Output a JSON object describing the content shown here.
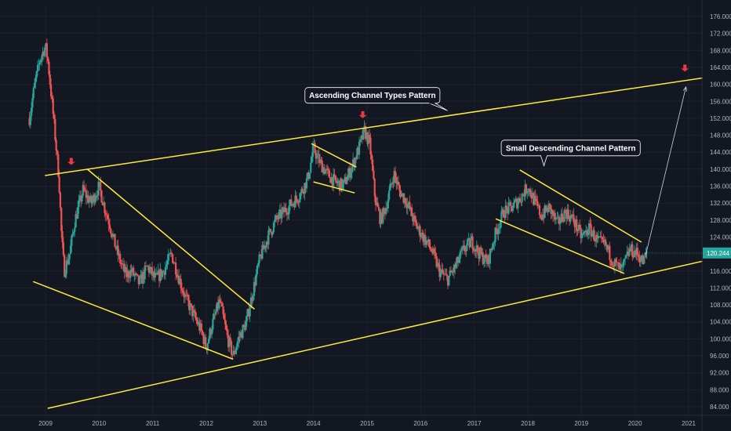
{
  "chart_data": {
    "type": "candlestick",
    "y_ticks": [
      "176.000",
      "172.000",
      "168.000",
      "164.000",
      "160.000",
      "156.000",
      "152.000",
      "148.000",
      "144.000",
      "140.000",
      "136.000",
      "132.000",
      "128.000",
      "124.000",
      "120.000",
      "116.000",
      "112.000",
      "108.000",
      "104.000",
      "100.000",
      "96.000",
      "92.000",
      "88.000",
      "84.000"
    ],
    "x_ticks": [
      "2009",
      "2010",
      "2011",
      "2012",
      "2013",
      "2014",
      "2015",
      "2016",
      "2017",
      "2018",
      "2019",
      "2020",
      "2021"
    ],
    "ylim": [
      83,
      178
    ],
    "xlim": [
      2008.7,
      2021.3
    ],
    "last_price": "120.244",
    "price_path": [
      [
        2008.7,
        152
      ],
      [
        2008.8,
        160
      ],
      [
        2008.9,
        166
      ],
      [
        2009.0,
        169
      ],
      [
        2009.05,
        165
      ],
      [
        2009.15,
        152
      ],
      [
        2009.25,
        138
      ],
      [
        2009.3,
        124
      ],
      [
        2009.35,
        116
      ],
      [
        2009.45,
        120
      ],
      [
        2009.55,
        128
      ],
      [
        2009.7,
        135
      ],
      [
        2009.85,
        132
      ],
      [
        2010.0,
        136
      ],
      [
        2010.1,
        131
      ],
      [
        2010.2,
        127
      ],
      [
        2010.3,
        122
      ],
      [
        2010.4,
        118
      ],
      [
        2010.5,
        115
      ],
      [
        2010.6,
        116
      ],
      [
        2010.75,
        113
      ],
      [
        2010.9,
        117
      ],
      [
        2011.05,
        114
      ],
      [
        2011.2,
        116
      ],
      [
        2011.35,
        120
      ],
      [
        2011.45,
        116
      ],
      [
        2011.6,
        110
      ],
      [
        2011.75,
        106
      ],
      [
        2011.9,
        102
      ],
      [
        2012.0,
        98
      ],
      [
        2012.1,
        103
      ],
      [
        2012.25,
        109
      ],
      [
        2012.4,
        100
      ],
      [
        2012.5,
        96
      ],
      [
        2012.6,
        100
      ],
      [
        2012.75,
        104
      ],
      [
        2012.85,
        110
      ],
      [
        2013.0,
        119
      ],
      [
        2013.15,
        124
      ],
      [
        2013.3,
        128
      ],
      [
        2013.45,
        130
      ],
      [
        2013.6,
        132
      ],
      [
        2013.75,
        134
      ],
      [
        2013.9,
        138
      ],
      [
        2014.0,
        145
      ],
      [
        2014.1,
        142
      ],
      [
        2014.25,
        139
      ],
      [
        2014.4,
        137
      ],
      [
        2014.55,
        136
      ],
      [
        2014.7,
        140
      ],
      [
        2014.85,
        145
      ],
      [
        2014.95,
        149
      ],
      [
        2015.05,
        146
      ],
      [
        2015.15,
        133
      ],
      [
        2015.25,
        128
      ],
      [
        2015.35,
        131
      ],
      [
        2015.5,
        139
      ],
      [
        2015.6,
        135
      ],
      [
        2015.75,
        132
      ],
      [
        2015.9,
        127
      ],
      [
        2016.05,
        124
      ],
      [
        2016.2,
        121
      ],
      [
        2016.35,
        116
      ],
      [
        2016.5,
        114
      ],
      [
        2016.65,
        117
      ],
      [
        2016.8,
        121
      ],
      [
        2016.95,
        123
      ],
      [
        2017.1,
        120
      ],
      [
        2017.25,
        118
      ],
      [
        2017.4,
        125
      ],
      [
        2017.55,
        130
      ],
      [
        2017.7,
        131
      ],
      [
        2017.85,
        133
      ],
      [
        2018.0,
        136
      ],
      [
        2018.1,
        133
      ],
      [
        2018.25,
        129
      ],
      [
        2018.4,
        131
      ],
      [
        2018.55,
        127
      ],
      [
        2018.7,
        130
      ],
      [
        2018.85,
        128
      ],
      [
        2019.0,
        124
      ],
      [
        2019.15,
        126
      ],
      [
        2019.3,
        123
      ],
      [
        2019.45,
        122
      ],
      [
        2019.6,
        118
      ],
      [
        2019.75,
        116
      ],
      [
        2019.9,
        121
      ],
      [
        2020.05,
        120
      ],
      [
        2020.15,
        118
      ],
      [
        2020.22,
        120.2
      ]
    ],
    "lines": [
      {
        "name": "channel-upper",
        "points": [
          [
            2008.99,
            138.5
          ],
          [
            2021.26,
            161.5
          ]
        ]
      },
      {
        "name": "channel-lower",
        "points": [
          [
            2009.04,
            83.6
          ],
          [
            2021.26,
            118.3
          ]
        ]
      },
      {
        "name": "wedge-upper",
        "points": [
          [
            2009.78,
            140
          ],
          [
            2012.9,
            107
          ]
        ]
      },
      {
        "name": "wedge-lower",
        "points": [
          [
            2008.77,
            113.5
          ],
          [
            2012.5,
            95.2
          ]
        ]
      },
      {
        "name": "flag-upper",
        "points": [
          [
            2013.96,
            146
          ],
          [
            2014.8,
            140.5
          ]
        ]
      },
      {
        "name": "flag-lower",
        "points": [
          [
            2014.0,
            137
          ],
          [
            2014.77,
            134.4
          ]
        ]
      },
      {
        "name": "small-desc-upper",
        "points": [
          [
            2017.85,
            139.8
          ],
          [
            2020.12,
            122.8
          ]
        ]
      },
      {
        "name": "small-desc-lower",
        "points": [
          [
            2017.4,
            128.3
          ],
          [
            2019.8,
            115.4
          ]
        ]
      }
    ],
    "arrows": [
      {
        "name": "arrow-2009",
        "at": [
          2009.48,
          141
        ]
      },
      {
        "name": "arrow-2014",
        "at": [
          2014.92,
          152
        ]
      },
      {
        "name": "arrow-2021",
        "at": [
          2020.93,
          163
        ]
      }
    ],
    "annotations": [
      {
        "text": "Ascending Channel Types Pattern",
        "box_at": [
          2015.1,
          157.4
        ],
        "tail_to": [
          2016.5,
          153.8
        ]
      },
      {
        "text": "Small Descending Channel Pattern",
        "box_at": [
          2018.8,
          145
        ],
        "tail_to": [
          2018.3,
          140.8
        ]
      }
    ],
    "projection_arrow": {
      "from": [
        2020.2,
        119.8
      ],
      "to": [
        2020.95,
        159.4
      ]
    },
    "colors": {
      "background": "#131722",
      "grid": "#1e222d",
      "up": "#26a69a",
      "down": "#ef5350",
      "lines": "#ffeb3b",
      "arrow": "#f23645",
      "price_tag": "#26a69a",
      "axis_text": "#b2b5be"
    }
  }
}
